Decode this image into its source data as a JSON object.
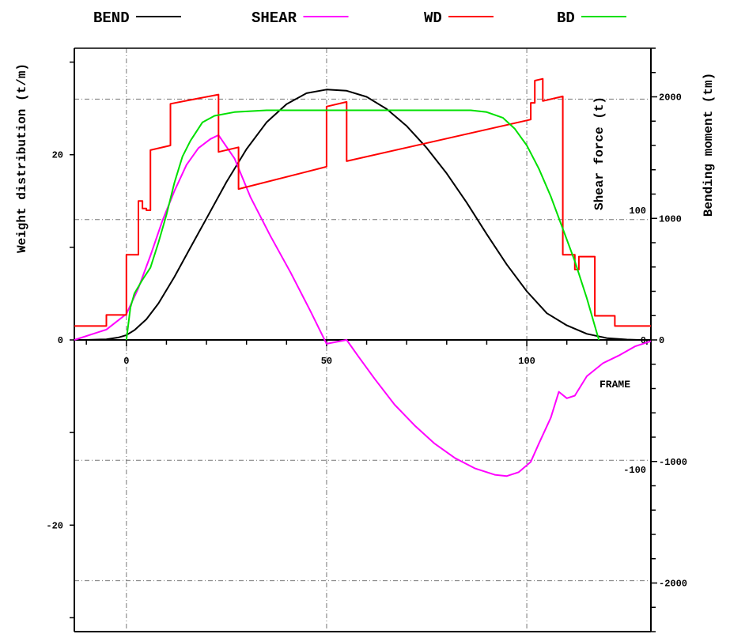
{
  "chart_data": {
    "type": "line",
    "legend": [
      {
        "label": "BEND",
        "color": "#000000"
      },
      {
        "label": "SHEAR",
        "color": "#ff00ff"
      },
      {
        "label": "WD",
        "color": "#ff0000"
      },
      {
        "label": "BD",
        "color": "#00e000"
      }
    ],
    "axes": {
      "left_label": "Weight distribution (t/m)",
      "shear_label": "Shear force (t)",
      "bending_label": "Bending moment (tm)",
      "x_label": "FRAME"
    },
    "x_range": [
      -13,
      131
    ],
    "x_ticks": [
      "0",
      "50",
      "100"
    ],
    "x_tick_values": [
      0,
      50,
      100
    ],
    "left_range": [
      -31.5,
      31.5
    ],
    "left_ticks": [
      "20",
      "0",
      "-20"
    ],
    "left_tick_values": [
      20,
      0,
      -20
    ],
    "shear_range": [
      -225,
      225
    ],
    "shear_ticks": [
      "100",
      "0",
      "-100"
    ],
    "shear_tick_values": [
      100,
      0,
      -100
    ],
    "bending_range": [
      -2400,
      2400
    ],
    "bending_ticks": [
      "2000",
      "1000",
      "0",
      "-1000",
      "-2000"
    ],
    "bending_tick_values": [
      2000,
      1000,
      0,
      -1000,
      -2000
    ],
    "grid_y_values": [
      26,
      13,
      -13,
      -26
    ],
    "grid_x_values": [
      0,
      50,
      100
    ],
    "series": [
      {
        "name": "BEND",
        "axis": "bending",
        "color": "#000000",
        "points": [
          [
            -10,
            0
          ],
          [
            -5,
            5
          ],
          [
            -2,
            20
          ],
          [
            0,
            40
          ],
          [
            2,
            80
          ],
          [
            5,
            170
          ],
          [
            8,
            300
          ],
          [
            12,
            520
          ],
          [
            16,
            760
          ],
          [
            20,
            1000
          ],
          [
            25,
            1300
          ],
          [
            30,
            1570
          ],
          [
            35,
            1790
          ],
          [
            40,
            1940
          ],
          [
            45,
            2030
          ],
          [
            50,
            2060
          ],
          [
            55,
            2050
          ],
          [
            60,
            2000
          ],
          [
            65,
            1900
          ],
          [
            70,
            1760
          ],
          [
            75,
            1580
          ],
          [
            80,
            1370
          ],
          [
            85,
            1130
          ],
          [
            90,
            870
          ],
          [
            95,
            620
          ],
          [
            100,
            400
          ],
          [
            105,
            220
          ],
          [
            110,
            120
          ],
          [
            115,
            50
          ],
          [
            120,
            15
          ],
          [
            125,
            3
          ],
          [
            128,
            0
          ]
        ]
      },
      {
        "name": "SHEAR",
        "axis": "shear",
        "color": "#ff00ff",
        "points": [
          [
            -13,
            0
          ],
          [
            -5,
            8
          ],
          [
            0,
            20
          ],
          [
            3,
            40
          ],
          [
            6,
            65
          ],
          [
            9,
            92
          ],
          [
            12,
            115
          ],
          [
            15,
            135
          ],
          [
            18,
            148
          ],
          [
            21,
            155
          ],
          [
            23,
            158
          ],
          [
            27,
            140
          ],
          [
            31,
            110
          ],
          [
            36,
            80
          ],
          [
            41,
            52
          ],
          [
            46,
            22
          ],
          [
            50,
            -3
          ],
          [
            55,
            0
          ],
          [
            58,
            -13
          ],
          [
            62,
            -30
          ],
          [
            67,
            -50
          ],
          [
            72,
            -66
          ],
          [
            77,
            -80
          ],
          [
            82,
            -91
          ],
          [
            87,
            -99
          ],
          [
            92,
            -104
          ],
          [
            95,
            -105
          ],
          [
            98,
            -102
          ],
          [
            101,
            -94
          ],
          [
            103,
            -80
          ],
          [
            106,
            -60
          ],
          [
            108,
            -40
          ],
          [
            110,
            -45
          ],
          [
            112,
            -43
          ],
          [
            115,
            -28
          ],
          [
            119,
            -18
          ],
          [
            123,
            -12
          ],
          [
            127,
            -5
          ],
          [
            131,
            -1
          ]
        ]
      },
      {
        "name": "WD",
        "axis": "left",
        "color": "#ff0000",
        "points": [
          [
            -13,
            1.5
          ],
          [
            -5,
            1.5
          ],
          [
            -5,
            2.7
          ],
          [
            0,
            2.7
          ],
          [
            0,
            9.2
          ],
          [
            3,
            9.2
          ],
          [
            3,
            15.0
          ],
          [
            4,
            15.0
          ],
          [
            4,
            14.2
          ],
          [
            5,
            14.2
          ],
          [
            5,
            14.0
          ],
          [
            6,
            14.0
          ],
          [
            6,
            20.5
          ],
          [
            11,
            21.0
          ],
          [
            11,
            25.5
          ],
          [
            23,
            26.5
          ],
          [
            23,
            20.3
          ],
          [
            28,
            20.8
          ],
          [
            28,
            16.3
          ],
          [
            50,
            18.7
          ],
          [
            50,
            25.2
          ],
          [
            55,
            25.7
          ],
          [
            55,
            19.3
          ],
          [
            101,
            23.8
          ],
          [
            101,
            25.6
          ],
          [
            102,
            25.6
          ],
          [
            102,
            28.0
          ],
          [
            104,
            28.2
          ],
          [
            104,
            25.8
          ],
          [
            109,
            26.3
          ],
          [
            109,
            9.2
          ],
          [
            112,
            9.2
          ],
          [
            112,
            7.6
          ],
          [
            113,
            7.6
          ],
          [
            113,
            9.0
          ],
          [
            117,
            9.0
          ],
          [
            117,
            2.6
          ],
          [
            122,
            2.6
          ],
          [
            122,
            1.5
          ],
          [
            131,
            1.5
          ]
        ]
      },
      {
        "name": "BD",
        "axis": "left",
        "color": "#00e000",
        "points": [
          [
            0,
            0
          ],
          [
            1,
            3.5
          ],
          [
            2,
            5.0
          ],
          [
            4,
            6.5
          ],
          [
            6,
            7.8
          ],
          [
            8,
            10.5
          ],
          [
            10,
            13.5
          ],
          [
            12,
            17.0
          ],
          [
            14,
            19.8
          ],
          [
            16,
            21.5
          ],
          [
            19,
            23.5
          ],
          [
            22,
            24.2
          ],
          [
            27,
            24.6
          ],
          [
            35,
            24.8
          ],
          [
            50,
            24.8
          ],
          [
            70,
            24.8
          ],
          [
            86,
            24.8
          ],
          [
            90,
            24.6
          ],
          [
            94,
            24.0
          ],
          [
            97,
            22.8
          ],
          [
            100,
            21.0
          ],
          [
            103,
            18.5
          ],
          [
            106,
            15.5
          ],
          [
            109,
            12.0
          ],
          [
            112,
            8.5
          ],
          [
            115,
            4.5
          ],
          [
            117,
            1.5
          ],
          [
            118,
            0
          ]
        ]
      }
    ]
  }
}
